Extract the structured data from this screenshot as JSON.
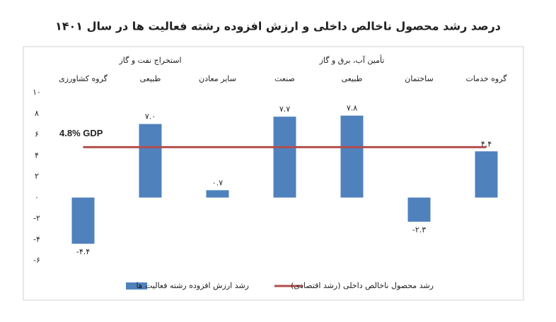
{
  "chart_data": {
    "type": "bar",
    "title": "درصد رشد محصول ناخالص داخلی و ارزش افزوده رشته فعالیت ها در سال ۱۴۰۱",
    "categories": [
      "گروه کشاورزی",
      "طبیعی",
      "سایر معادن",
      "صنعت",
      "طبیعی",
      "ساختمان",
      "گروه خدمات"
    ],
    "category_groups": [
      null,
      "استخراج نفت و گاز",
      null,
      null,
      "تأمین آب، برق و گاز",
      null,
      null
    ],
    "series": [
      {
        "name": "رشد ارزش افزوده رشته فعالیت ها",
        "color": "#4f81bd",
        "values": [
          -4.4,
          7.0,
          0.7,
          7.7,
          7.8,
          -2.3,
          4.4
        ],
        "value_labels": [
          "-۴.۴",
          "۷.۰",
          "۰.۷",
          "۷.۷",
          "۷.۸",
          "-۲.۳",
          "۴.۴"
        ]
      }
    ],
    "reference_line": {
      "name": "رشد محصول ناخالص داخلی (رشد اقتصادی)",
      "value": 4.8,
      "label": "4.8%  GDP",
      "color": "#b24e4c"
    },
    "ylim": [
      -6,
      10
    ],
    "yticks": [
      {
        "value": -6,
        "label": "-۶"
      },
      {
        "value": -4,
        "label": "-۴"
      },
      {
        "value": -2,
        "label": "-۲"
      },
      {
        "value": 0,
        "label": "۰"
      },
      {
        "value": 2,
        "label": "۲"
      },
      {
        "value": 4,
        "label": "۴"
      },
      {
        "value": 6,
        "label": "۶"
      },
      {
        "value": 8,
        "label": "۸"
      },
      {
        "value": 10,
        "label": "۱۰"
      }
    ]
  }
}
